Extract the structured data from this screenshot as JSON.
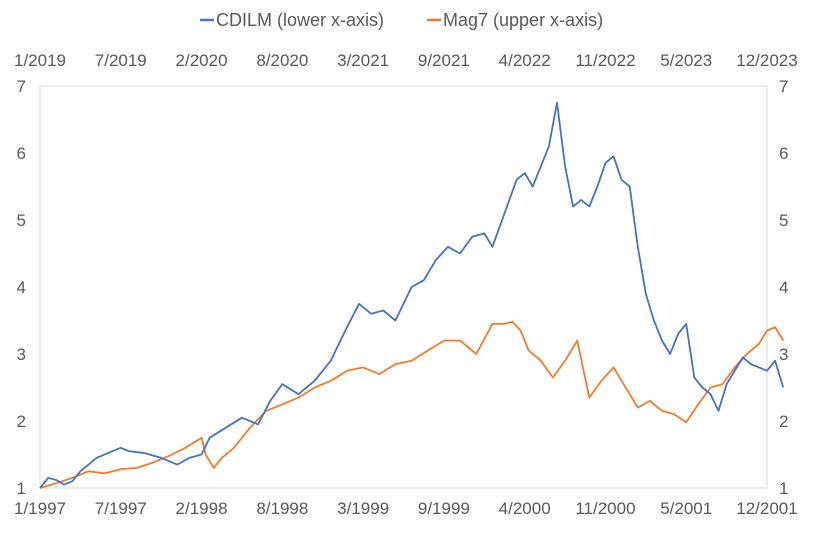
{
  "chart_data": {
    "type": "line",
    "title": "",
    "legend_position": "top",
    "grid": false,
    "ylim": [
      1,
      7
    ],
    "y_ticks": [
      "1",
      "2",
      "3",
      "4",
      "5",
      "6",
      "7"
    ],
    "lower_x_ticks": [
      "1/1997",
      "7/1997",
      "2/1998",
      "8/1998",
      "3/1999",
      "9/1999",
      "4/2000",
      "11/2000",
      "5/2001",
      "12/2001"
    ],
    "upper_x_ticks": [
      "1/2019",
      "7/2019",
      "2/2020",
      "8/2020",
      "3/2021",
      "9/2021",
      "4/2022",
      "11/2022",
      "5/2023",
      "12/2023"
    ],
    "series": [
      {
        "name": "CDILM (lower x-axis)",
        "color": "#4472C4",
        "axis": "lower",
        "x": [
          0,
          0.1,
          0.2,
          0.3,
          0.4,
          0.5,
          0.7,
          0.9,
          1.0,
          1.1,
          1.3,
          1.5,
          1.7,
          1.85,
          2.0,
          2.1,
          2.3,
          2.5,
          2.7,
          2.85,
          3.0,
          3.2,
          3.4,
          3.6,
          3.8,
          3.95,
          4.1,
          4.25,
          4.4,
          4.6,
          4.75,
          4.9,
          5.05,
          5.2,
          5.35,
          5.5,
          5.6,
          5.75,
          5.9,
          6.0,
          6.1,
          6.2,
          6.3,
          6.4,
          6.5,
          6.6,
          6.7,
          6.8,
          6.9,
          7.0,
          7.1,
          7.2,
          7.3,
          7.4,
          7.5,
          7.6,
          7.7,
          7.8,
          7.9,
          8.0,
          8.1,
          8.2,
          8.3,
          8.4,
          8.5,
          8.6,
          8.7,
          8.8,
          8.9,
          9.0,
          9.1,
          9.2
        ],
        "values": [
          1.0,
          1.15,
          1.12,
          1.05,
          1.1,
          1.25,
          1.45,
          1.55,
          1.6,
          1.55,
          1.52,
          1.45,
          1.35,
          1.45,
          1.5,
          1.75,
          1.9,
          2.05,
          1.95,
          2.3,
          2.55,
          2.4,
          2.6,
          2.9,
          3.4,
          3.75,
          3.6,
          3.65,
          3.5,
          4.0,
          4.1,
          4.4,
          4.6,
          4.5,
          4.75,
          4.8,
          4.6,
          5.1,
          5.6,
          5.7,
          5.5,
          5.8,
          6.1,
          6.75,
          5.8,
          5.2,
          5.3,
          5.2,
          5.5,
          5.85,
          5.95,
          5.6,
          5.5,
          4.6,
          3.9,
          3.5,
          3.2,
          3.0,
          3.3,
          3.45,
          2.65,
          2.5,
          2.4,
          2.15,
          2.55,
          2.75,
          2.95,
          2.85,
          2.8,
          2.75,
          2.9,
          2.5
        ]
      },
      {
        "name": "Mag7 (upper x-axis)",
        "color": "#ED7D31",
        "axis": "upper",
        "x": [
          0,
          0.2,
          0.4,
          0.6,
          0.8,
          1.0,
          1.2,
          1.4,
          1.6,
          1.8,
          2.0,
          2.05,
          2.15,
          2.25,
          2.4,
          2.6,
          2.8,
          3.0,
          3.2,
          3.4,
          3.6,
          3.8,
          4.0,
          4.2,
          4.4,
          4.6,
          4.8,
          5.0,
          5.2,
          5.4,
          5.6,
          5.75,
          5.85,
          5.95,
          6.05,
          6.2,
          6.35,
          6.5,
          6.65,
          6.8,
          6.95,
          7.1,
          7.25,
          7.4,
          7.55,
          7.7,
          7.85,
          8.0,
          8.15,
          8.3,
          8.45,
          8.6,
          8.75,
          8.9,
          9.0,
          9.1,
          9.2
        ],
        "values": [
          1.0,
          1.07,
          1.15,
          1.25,
          1.22,
          1.28,
          1.3,
          1.38,
          1.48,
          1.6,
          1.75,
          1.5,
          1.3,
          1.45,
          1.6,
          1.9,
          2.15,
          2.25,
          2.35,
          2.5,
          2.6,
          2.75,
          2.8,
          2.7,
          2.85,
          2.9,
          3.05,
          3.2,
          3.2,
          3.0,
          3.45,
          3.45,
          3.48,
          3.35,
          3.05,
          2.9,
          2.65,
          2.9,
          3.2,
          2.35,
          2.6,
          2.8,
          2.5,
          2.2,
          2.3,
          2.15,
          2.1,
          1.98,
          2.25,
          2.5,
          2.55,
          2.8,
          3.0,
          3.15,
          3.35,
          3.4,
          3.2
        ]
      }
    ]
  }
}
